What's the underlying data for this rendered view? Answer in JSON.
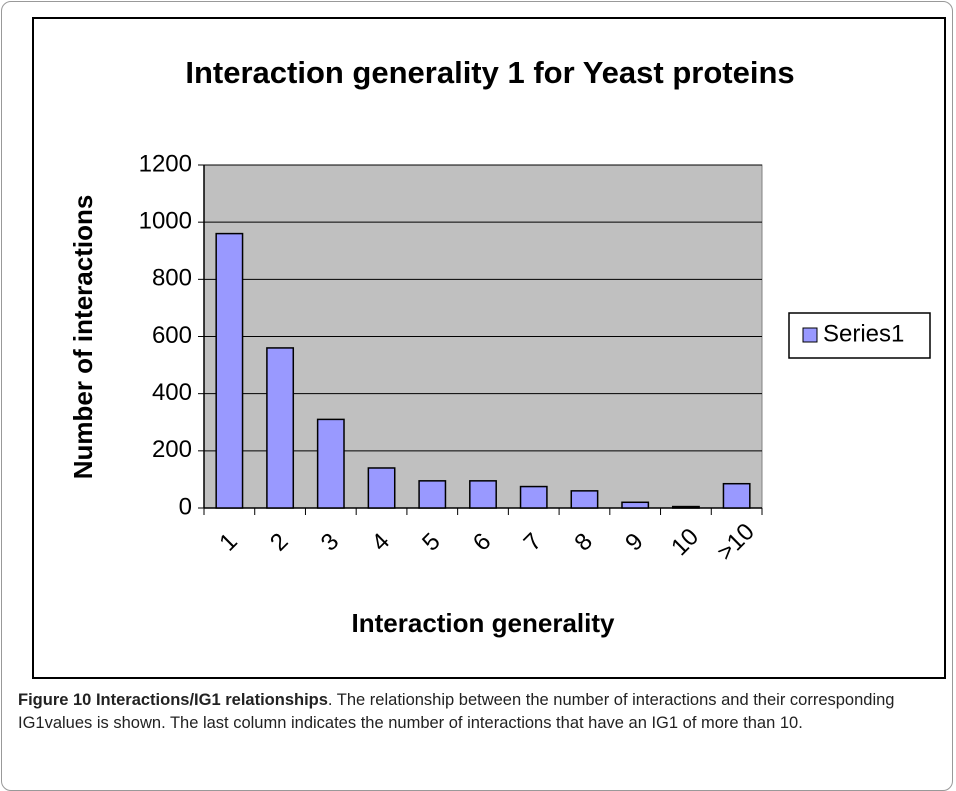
{
  "chart_data": {
    "type": "bar",
    "title": "Interaction generality 1 for Yeast proteins",
    "x_label": "Interaction generality",
    "y_label": "Number of interactions",
    "categories": [
      "1",
      "2",
      "3",
      "4",
      "5",
      "6",
      "7",
      "8",
      "9",
      "10",
      ">10"
    ],
    "series": [
      {
        "name": "Series1",
        "color": "#9999ff",
        "values": [
          960,
          560,
          310,
          140,
          95,
          95,
          75,
          60,
          20,
          5,
          85
        ]
      }
    ],
    "ylim": [
      0,
      1200
    ],
    "yticks": [
      0,
      200,
      400,
      600,
      800,
      1000,
      1200
    ],
    "grid": true,
    "legend": "right"
  },
  "caption": {
    "label": "Figure 10 Interactions/IG1 relationships",
    "text": ". The relationship between the number of interactions and their corresponding IG1values is shown. The last column indicates the number of interactions that have an IG1 of more than 10."
  }
}
